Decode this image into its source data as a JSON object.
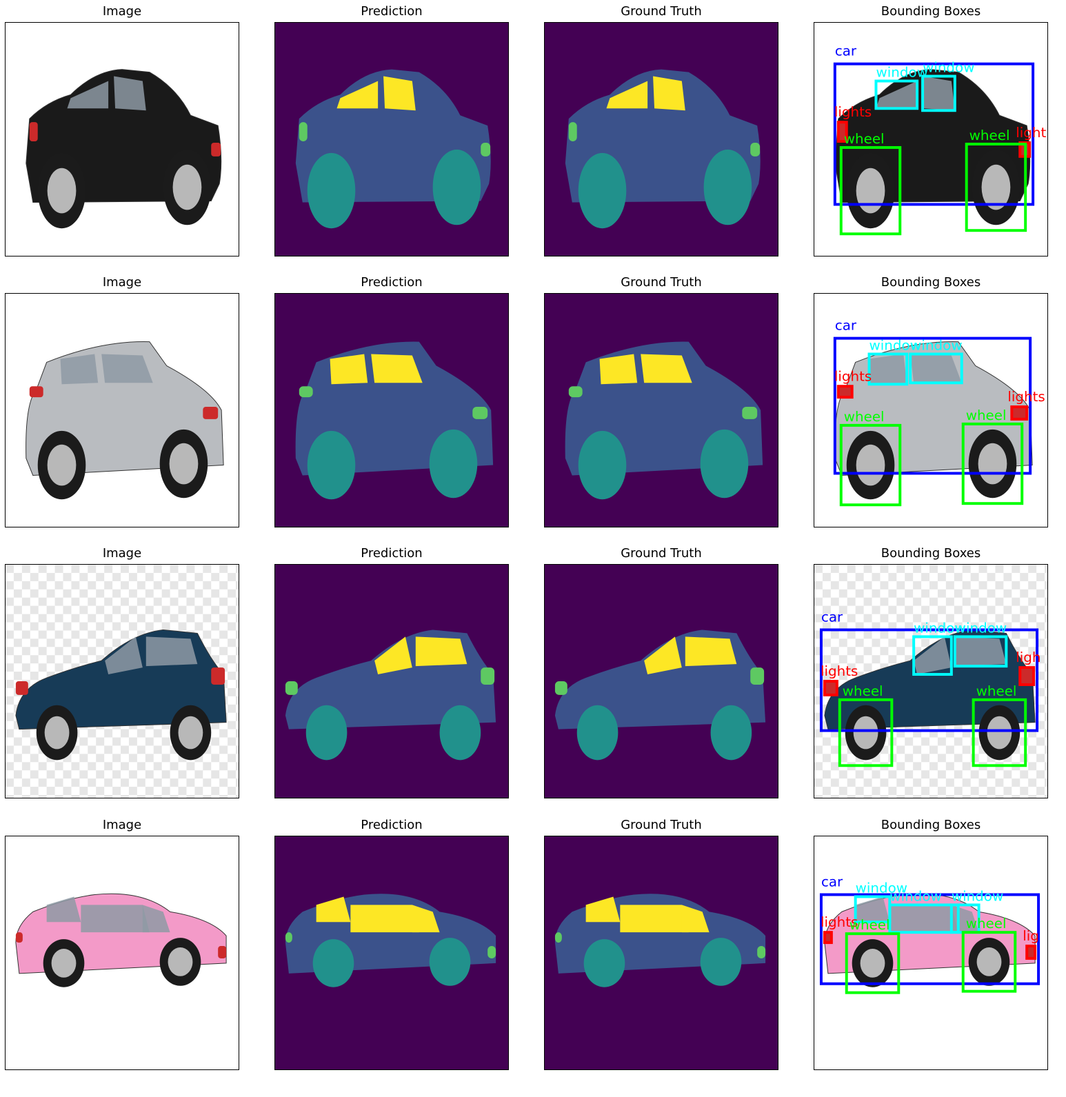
{
  "column_titles": [
    "Image",
    "Prediction",
    "Ground Truth",
    "Bounding Boxes"
  ],
  "colors": {
    "background_class": "#440154",
    "car_body_class": "#3b528b",
    "wheel_class": "#21918c",
    "light_class": "#5ec962",
    "window_class": "#fde725",
    "box_car": "#0000ff",
    "box_window": "#00ffff",
    "box_lights": "#ff0000",
    "box_wheel": "#00ff00"
  },
  "rows": [
    {
      "car_color": "#1a1a1a",
      "background": "white",
      "labels": {
        "car": "car",
        "window_a": "window",
        "window_b": "window",
        "lights_left": "lights",
        "lights_right": "light",
        "wheel_left": "wheel",
        "wheel_right": "wheel"
      }
    },
    {
      "car_color": "#b9bcc0",
      "background": "white",
      "labels": {
        "car": "car",
        "window_a": "window",
        "window_b": "window",
        "lights_left": "lights",
        "lights_right": "lights",
        "wheel_left": "wheel",
        "wheel_right": "wheel"
      }
    },
    {
      "car_color": "#173b57",
      "background": "checker",
      "labels": {
        "car": "car",
        "window_a": "window",
        "window_b": "window",
        "lights_left": "lights",
        "lights_right": "ligh",
        "wheel_left": "wheel",
        "wheel_right": "wheel"
      }
    },
    {
      "car_color": "#f39ac8",
      "background": "white",
      "labels": {
        "car": "car",
        "window_a": "window",
        "window_b": "window",
        "window_c": "window",
        "lights_left": "lights",
        "lights_right": "lig",
        "wheel_left": "wheel",
        "wheel_right": "wheel"
      }
    }
  ]
}
